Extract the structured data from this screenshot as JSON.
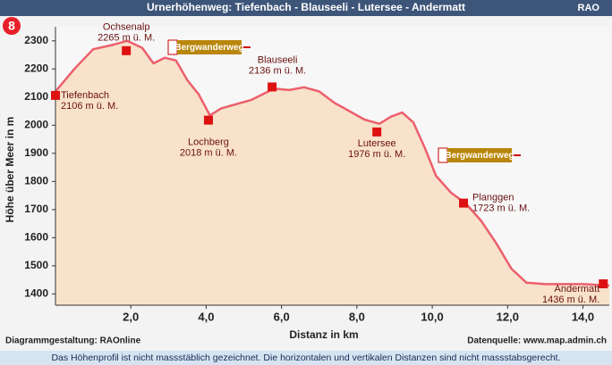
{
  "chart_data": {
    "type": "profile",
    "title": "Urnerhöhenweg: Tiefenbach - Blauseeli - Lutersee - Andermatt",
    "brand": "RAO",
    "badge": "8",
    "xlabel": "Distanz in km",
    "ylabel": "Höhe über Meer in m",
    "credit_left": "Diagrammgestaltung: RAOnline",
    "credit_right": "Datenquelle: www.map.admin.ch",
    "note": "Das Höhenprofil ist nicht massstäblich gezeichnet. Die horizontalen und vertikalen Distanzen sind nicht massstabsgerecht.",
    "xlim": [
      0,
      14.7
    ],
    "ylim": [
      1360,
      2350
    ],
    "xticks": [
      {
        "value": 2,
        "label": "2,0"
      },
      {
        "value": 4,
        "label": "4,0"
      },
      {
        "value": 6,
        "label": "6,0"
      },
      {
        "value": 8,
        "label": "8,0"
      },
      {
        "value": 10,
        "label": "10,0"
      },
      {
        "value": 12,
        "label": "12,0"
      },
      {
        "value": 14,
        "label": "14,0"
      }
    ],
    "yticks": [
      1400,
      1500,
      1600,
      1700,
      1800,
      1900,
      2000,
      2100,
      2200,
      2300
    ],
    "line_color": "#ec5f6c",
    "fill_color": "#f8e2cb",
    "marker_color": "#dd1111",
    "x": [
      0,
      0.5,
      1.0,
      1.5,
      1.9,
      2.3,
      2.6,
      2.9,
      3.2,
      3.5,
      3.8,
      4.1,
      4.4,
      4.8,
      5.2,
      5.5,
      5.8,
      6.2,
      6.6,
      7.0,
      7.4,
      7.8,
      8.2,
      8.6,
      8.9,
      9.2,
      9.5,
      9.8,
      10.1,
      10.5,
      10.9,
      11.3,
      11.7,
      12.1,
      12.5,
      13.0,
      14.0,
      14.7
    ],
    "values": [
      2120,
      2200,
      2270,
      2285,
      2300,
      2275,
      2220,
      2240,
      2230,
      2160,
      2110,
      2035,
      2060,
      2075,
      2090,
      2110,
      2130,
      2125,
      2135,
      2120,
      2080,
      2050,
      2020,
      2005,
      2030,
      2045,
      2010,
      1920,
      1820,
      1760,
      1720,
      1660,
      1580,
      1490,
      1440,
      1435,
      1435,
      1430
    ],
    "waypoints": [
      {
        "name": "Tiefenbach",
        "km": 0,
        "elevation": 2106,
        "label": "2106 m ü. M."
      },
      {
        "name": "Ochsenalp",
        "km": 1.88,
        "elevation": 2265,
        "label": "2265 m ü. M."
      },
      {
        "name": "Lochberg",
        "km": 4.06,
        "elevation": 2018,
        "label": "2018 m ü. M."
      },
      {
        "name": "Blauseeli",
        "km": 5.75,
        "elevation": 2136,
        "label": "2136 m ü. M."
      },
      {
        "name": "Lutersee",
        "km": 8.53,
        "elevation": 1976,
        "label": "1976 m ü. M."
      },
      {
        "name": "Planggen",
        "km": 10.83,
        "elevation": 1723,
        "label": "1723 m ü. M."
      },
      {
        "name": "Andermatt",
        "km": 14.54,
        "elevation": 1436,
        "label": "1436 m ü. M."
      }
    ],
    "signs": [
      "Bergwanderweg",
      "Bergwanderweg"
    ]
  }
}
